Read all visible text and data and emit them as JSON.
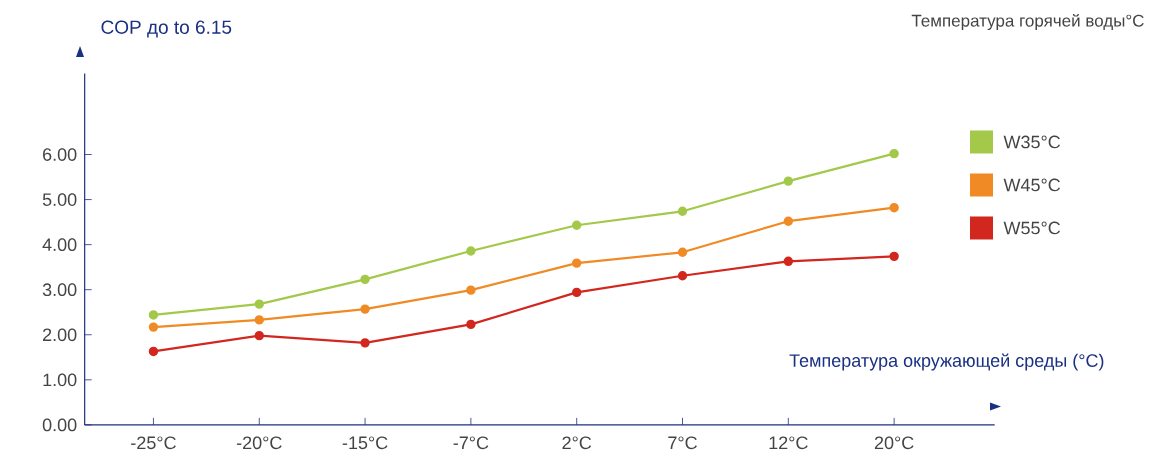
{
  "chart_data": {
    "type": "line",
    "title": "Температура горячей воды°C",
    "ylabel": "COP до to 6.15",
    "xlabel": "Температура окружающей среды (°C)",
    "categories": [
      "-25°C",
      "-20°C",
      "-15°C",
      "-7°C",
      "2°C",
      "7°C",
      "12°C",
      "20°C"
    ],
    "series": [
      {
        "name": "W35°C",
        "color": "#a3c84a",
        "values": [
          2.44,
          2.68,
          3.23,
          3.86,
          4.43,
          4.74,
          5.41,
          6.02
        ]
      },
      {
        "name": "W45°C",
        "color": "#f08a24",
        "values": [
          2.17,
          2.33,
          2.57,
          2.99,
          3.59,
          3.83,
          4.52,
          4.82
        ]
      },
      {
        "name": "W55°C",
        "color": "#d2271e",
        "values": [
          1.63,
          1.98,
          1.82,
          2.23,
          2.94,
          3.31,
          3.63,
          3.74
        ]
      }
    ],
    "ylim": [
      0,
      7.8
    ],
    "yticks": [
      {
        "value": 0,
        "label": "0.00"
      },
      {
        "value": 1,
        "label": "1.00"
      },
      {
        "value": 2,
        "label": "2.00"
      },
      {
        "value": 3,
        "label": "3.00"
      },
      {
        "value": 4,
        "label": "4.00"
      },
      {
        "value": 5,
        "label": "5.00"
      },
      {
        "value": 6,
        "label": "6.00"
      }
    ],
    "grid": false,
    "legend": "right",
    "marker": "circle",
    "line_style": "solid"
  }
}
